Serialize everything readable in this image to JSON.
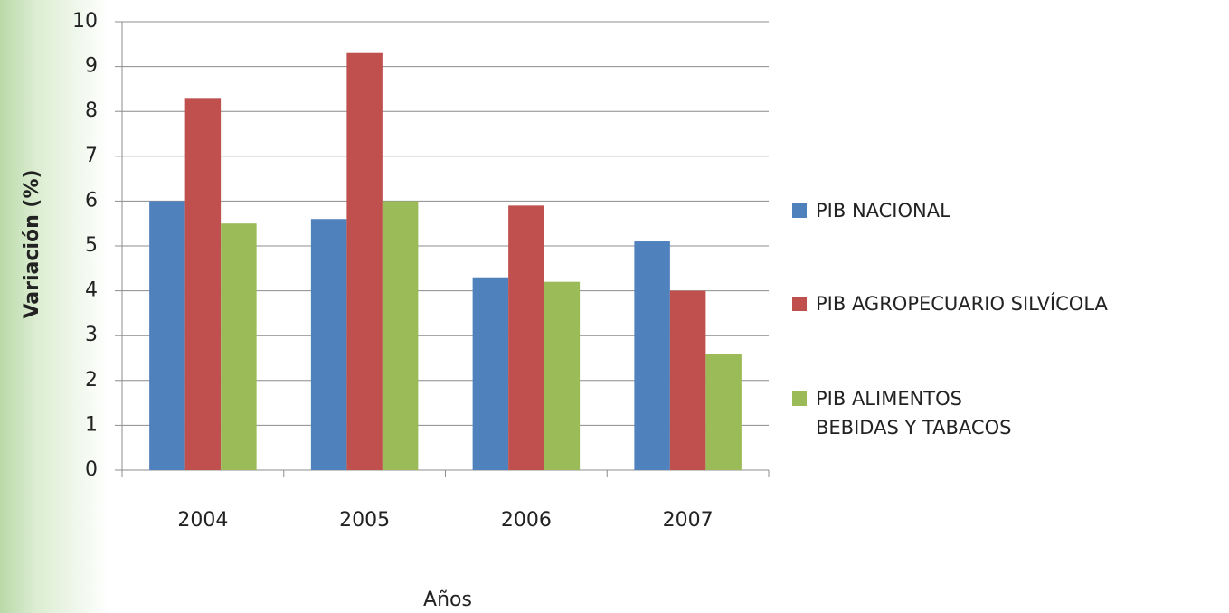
{
  "chart_data": {
    "type": "bar",
    "y_label": "Variación (%)",
    "x_label": "Años",
    "categories": [
      "2004",
      "2005",
      "2006",
      "2007"
    ],
    "series": [
      {
        "name": "PIB NACIONAL",
        "color": "#4f81bd",
        "values": [
          6.0,
          5.6,
          4.3,
          5.1
        ]
      },
      {
        "name": "PIB AGROPECUARIO SILVÍCOLA",
        "color": "#c0504d",
        "values": [
          8.3,
          9.3,
          5.9,
          4.0
        ]
      },
      {
        "name": "PIB ALIMENTOS BEBIDAS Y TABACOS",
        "color": "#9bbb59",
        "values": [
          5.5,
          6.0,
          4.2,
          2.6
        ]
      }
    ],
    "ylim": [
      0,
      10
    ],
    "yticks": [
      0,
      1,
      2,
      3,
      4,
      5,
      6,
      7,
      8,
      9,
      10
    ],
    "grid": true,
    "legend": "right"
  }
}
